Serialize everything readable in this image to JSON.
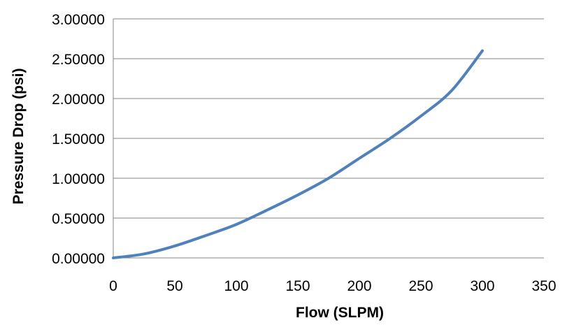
{
  "chart_data": {
    "type": "line",
    "title": "",
    "xlabel": "Flow (SLPM)",
    "ylabel": "Pressure Drop (psi)",
    "xlim": [
      0,
      350
    ],
    "ylim": [
      0,
      3
    ],
    "x_ticks": [
      0,
      50,
      100,
      150,
      200,
      250,
      300,
      350
    ],
    "x_tick_labels": [
      "0",
      "50",
      "100",
      "150",
      "200",
      "250",
      "300",
      "350"
    ],
    "y_ticks": [
      0,
      0.5,
      1,
      1.5,
      2,
      2.5,
      3
    ],
    "y_tick_labels": [
      "0.00000",
      "0.50000",
      "1.00000",
      "1.50000",
      "2.00000",
      "2.50000",
      "3.00000"
    ],
    "grid": "horizontal",
    "legend": "none",
    "colors": {
      "series": "#4f81bd",
      "grid": "#868686",
      "axis": "#868686"
    },
    "series": [
      {
        "x": [
          0,
          25,
          50,
          75,
          100,
          125,
          150,
          175,
          200,
          225,
          250,
          275,
          300
        ],
        "y": [
          0.0,
          0.05,
          0.15,
          0.28,
          0.42,
          0.6,
          0.79,
          1.0,
          1.25,
          1.5,
          1.78,
          2.1,
          2.6
        ]
      }
    ]
  }
}
